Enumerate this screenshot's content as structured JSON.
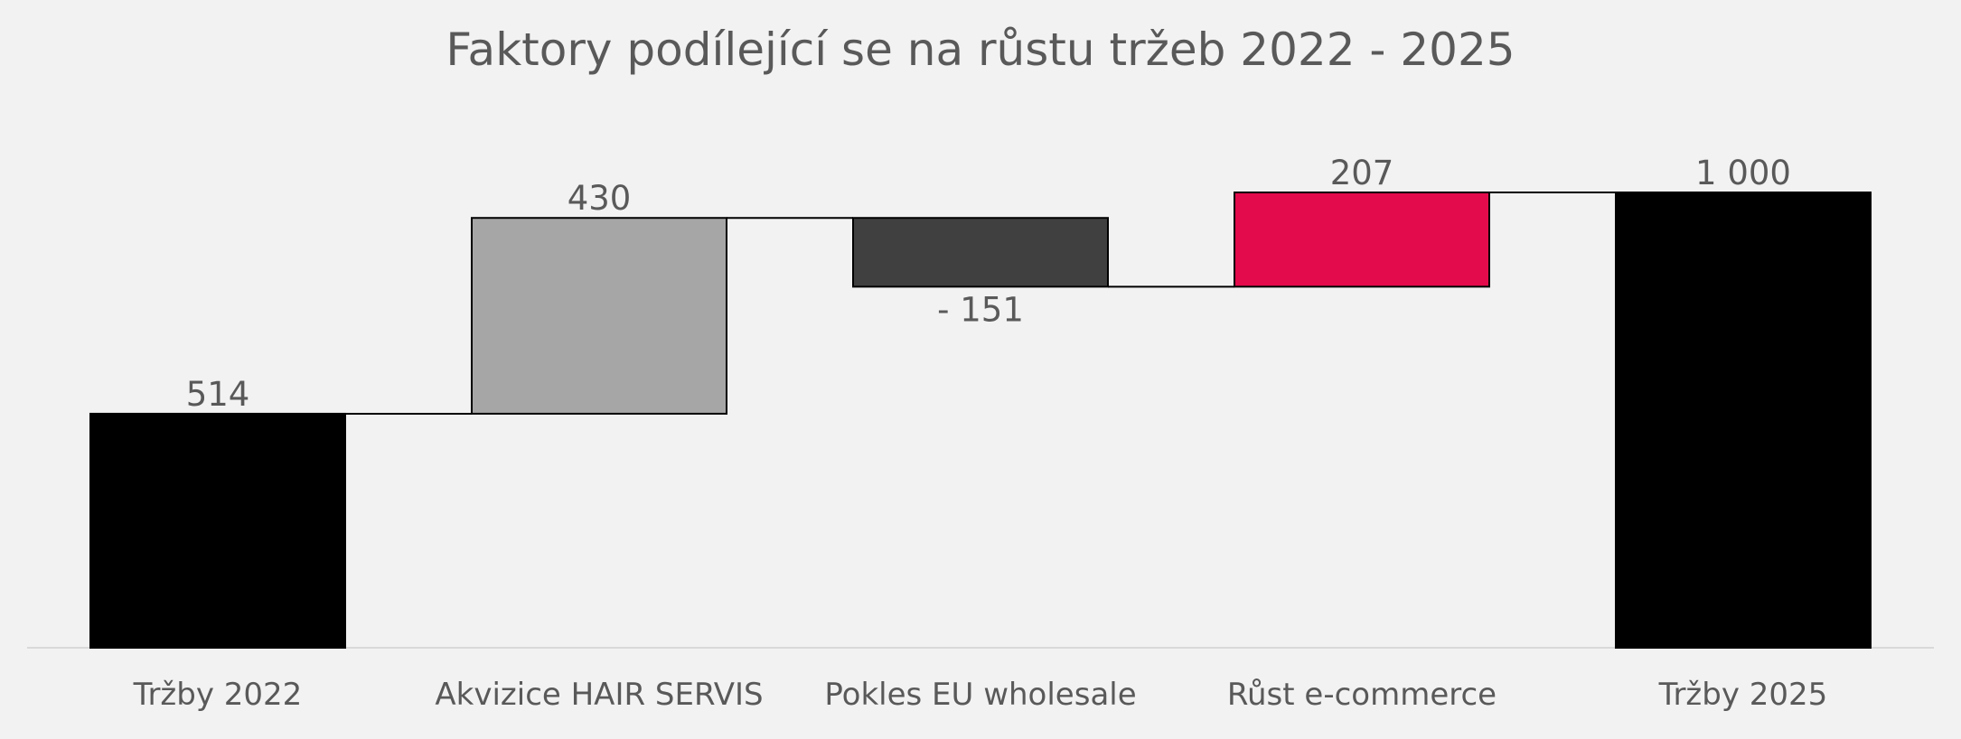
{
  "chart_data": {
    "type": "waterfall",
    "title": "Faktory podílející se na růstu tržeb 2022 - 2025",
    "categories": [
      "Tržby 2022",
      "Akvizice HAIR SERVIS",
      "Pokles EU wholesale",
      "Růst e-commerce",
      "Tržby 2025"
    ],
    "values": [
      514,
      430,
      -151,
      207,
      1000
    ],
    "value_labels": [
      "514",
      "430",
      "- 151",
      "207",
      "1 000"
    ],
    "kinds": [
      "total",
      "delta",
      "delta",
      "delta",
      "total"
    ],
    "colors": [
      "#000000",
      "#a6a6a6",
      "#404040",
      "#e30b4b",
      "#000000"
    ],
    "ylim": [
      0,
      1000
    ],
    "grid": false,
    "legend": "none",
    "connector_lines": true
  }
}
